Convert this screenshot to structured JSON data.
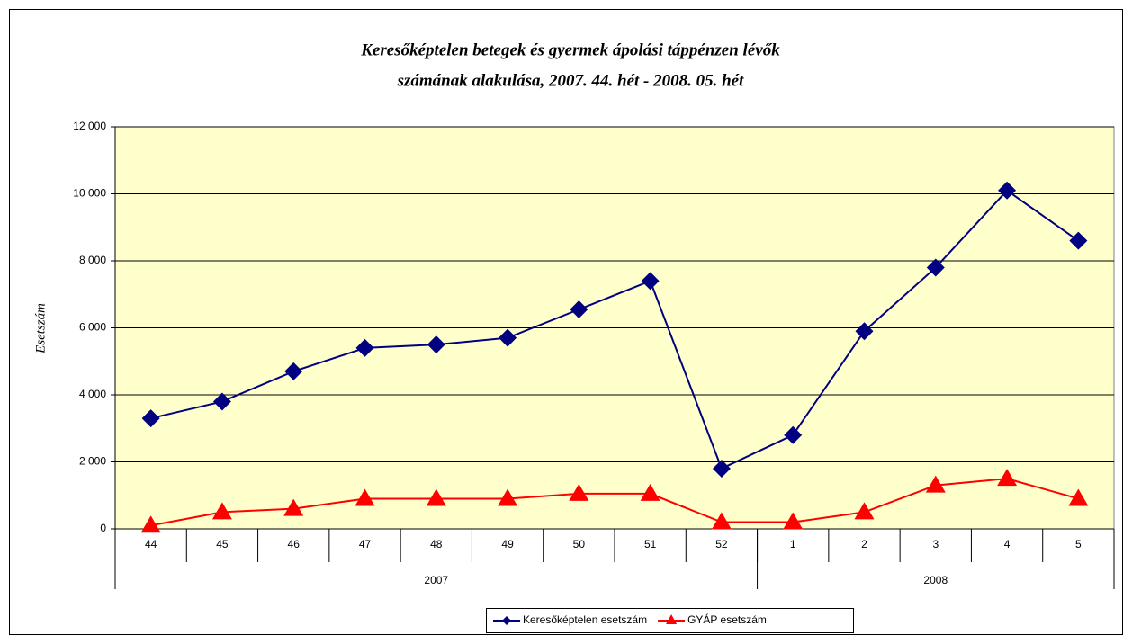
{
  "chart_data": {
    "type": "line",
    "title": [
      "Keresőképtelen betegek és gyermek ápolási táppénzen lévők",
      "számának alakulása, 2007. 44. hét - 2008. 05. hét"
    ],
    "y_label": "Esetszám",
    "categories": [
      "44",
      "45",
      "46",
      "47",
      "48",
      "49",
      "50",
      "51",
      "52",
      "1",
      "2",
      "3",
      "4",
      "5"
    ],
    "groups": [
      {
        "name": "2007",
        "count": 9
      },
      {
        "name": "2008",
        "count": 5
      }
    ],
    "series": [
      {
        "name": "Keresőképtelen esetszám",
        "color": "#000080",
        "marker": "diamond",
        "values": [
          3300,
          3800,
          4700,
          5400,
          5500,
          5700,
          6550,
          7400,
          1800,
          2800,
          5900,
          7800,
          10100,
          8600
        ]
      },
      {
        "name": "GYÁP esetszám",
        "color": "#ff0000",
        "marker": "triangle",
        "values": [
          100,
          500,
          600,
          900,
          900,
          900,
          1050,
          1050,
          200,
          200,
          500,
          1300,
          1500,
          900
        ]
      }
    ],
    "ylim": [
      0,
      12000
    ],
    "yticks": [
      0,
      {
        "value": 2000,
        "label": "2 000"
      },
      {
        "value": 4000,
        "label": "4 000"
      },
      {
        "value": 6000,
        "label": "6 000"
      },
      {
        "value": 8000,
        "label": "8 000"
      },
      {
        "value": 10000,
        "label": "10 000"
      },
      {
        "value": 12000,
        "label": "12 000"
      }
    ],
    "grid": true,
    "plot_background": "#ffffcc",
    "legend": "bottom"
  }
}
